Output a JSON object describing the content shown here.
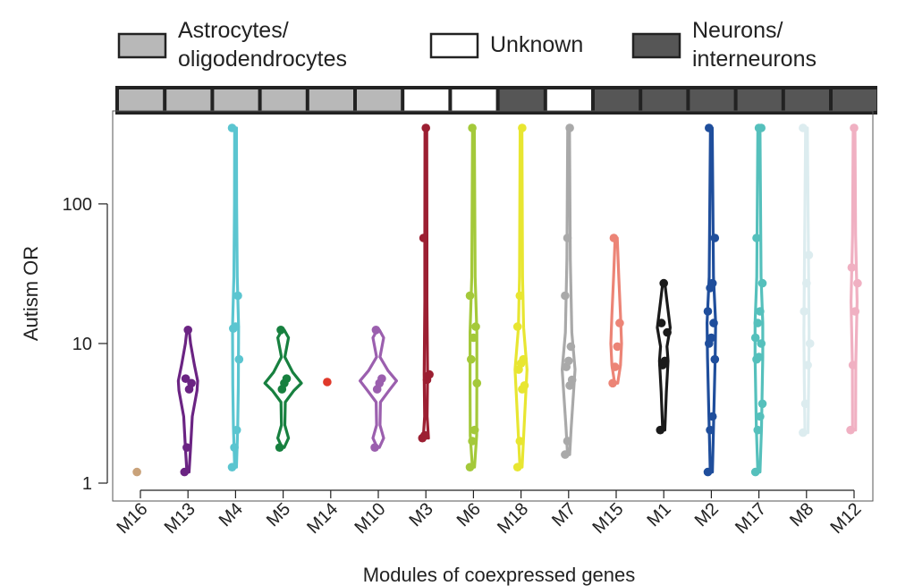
{
  "legend": [
    {
      "name": "Astrocytes/\noligodendrocytes",
      "lines": [
        "Astrocytes/",
        "oligodendrocytes"
      ],
      "color": "#b8b8b8"
    },
    {
      "name": "Unknown",
      "lines": [
        "Unknown"
      ],
      "color": "#ffffff"
    },
    {
      "name": "Neurons/\ninterneurons",
      "lines": [
        "Neurons/",
        "interneurons"
      ],
      "color": "#565656"
    }
  ],
  "chart_data": {
    "type": "violin",
    "xlabel": "Modules of coexpressed genes",
    "ylabel": "Autism OR",
    "yscale": "log",
    "ylim": [
      0.93,
      420
    ],
    "yticks": [
      1,
      10,
      100
    ],
    "grid": false,
    "legend_position": "top",
    "categories": [
      "M16",
      "M13",
      "M4",
      "M5",
      "M14",
      "M10",
      "M3",
      "M6",
      "M18",
      "M7",
      "M15",
      "M1",
      "M2",
      "M17",
      "M8",
      "M12"
    ],
    "cell_types": [
      "Astrocytes/\noligodendrocytes",
      "Astrocytes/\noligodendrocytes",
      "Astrocytes/\noligodendrocytes",
      "Astrocytes/\noligodendrocytes",
      "Astrocytes/\noligodendrocytes",
      "Astrocytes/\noligodendrocytes",
      "Unknown",
      "Unknown",
      "Neurons/\ninterneurons",
      "Unknown",
      "Neurons/\ninterneurons",
      "Neurons/\ninterneurons",
      "Neurons/\ninterneurons",
      "Neurons/\ninterneurons",
      "Neurons/\ninterneurons",
      "Neurons/\ninterneurons"
    ],
    "colors": [
      "#c9a27a",
      "#6b2483",
      "#5bc5d0",
      "#17803f",
      "#e0392b",
      "#9b5fae",
      "#9c1f32",
      "#a4c93a",
      "#e8e631",
      "#a9a9a9",
      "#ec8476",
      "#1a1a1a",
      "#1f4e9c",
      "#55c0bc",
      "#dcecef",
      "#f0b0c2"
    ],
    "series": [
      {
        "name": "M16",
        "points": [
          1.2
        ],
        "violin": []
      },
      {
        "name": "M13",
        "points": [
          1.2,
          1.8,
          4.7,
          5.2,
          5.6,
          12.5
        ],
        "violin": [
          [
            1.2,
            0.05
          ],
          [
            1.8,
            0.12
          ],
          [
            3,
            0.2
          ],
          [
            4.6,
            0.42
          ],
          [
            5.4,
            0.45
          ],
          [
            7,
            0.3
          ],
          [
            10,
            0.12
          ],
          [
            12.5,
            0.05
          ]
        ]
      },
      {
        "name": "M4",
        "points": [
          1.3,
          1.8,
          2.4,
          7.7,
          12.8,
          13.2,
          22,
          350
        ],
        "violin": [
          [
            1.3,
            0.04
          ],
          [
            2.5,
            0.1
          ],
          [
            5,
            0.13
          ],
          [
            13,
            0.14
          ],
          [
            30,
            0.08
          ],
          [
            100,
            0.05
          ],
          [
            350,
            0.04
          ]
        ]
      },
      {
        "name": "M5",
        "points": [
          1.8,
          4.7,
          5.2,
          5.6,
          12.5
        ],
        "violin": [
          [
            1.8,
            0.05
          ],
          [
            2.1,
            0.25
          ],
          [
            2.6,
            0.08
          ],
          [
            3.8,
            0.1
          ],
          [
            4.6,
            0.5
          ],
          [
            5.2,
            0.85
          ],
          [
            6.2,
            0.45
          ],
          [
            8,
            0.08
          ],
          [
            11,
            0.25
          ],
          [
            12.5,
            0.05
          ]
        ]
      },
      {
        "name": "M14",
        "points": [
          5.3
        ],
        "violin": []
      },
      {
        "name": "M10",
        "points": [
          1.8,
          4.7,
          5.2,
          5.6,
          12.5
        ],
        "violin": [
          [
            1.8,
            0.05
          ],
          [
            2.1,
            0.25
          ],
          [
            2.6,
            0.08
          ],
          [
            3.8,
            0.1
          ],
          [
            4.6,
            0.5
          ],
          [
            5.4,
            0.85
          ],
          [
            6.4,
            0.45
          ],
          [
            8,
            0.08
          ],
          [
            11,
            0.25
          ],
          [
            12.5,
            0.05
          ]
        ]
      },
      {
        "name": "M3",
        "points": [
          2.1,
          2.2,
          5.5,
          6.0,
          57,
          350
        ],
        "violin": [
          [
            2.1,
            0.12
          ],
          [
            3,
            0.06
          ],
          [
            6,
            0.08
          ],
          [
            20,
            0.05
          ],
          [
            57,
            0.05
          ],
          [
            350,
            0.04
          ]
        ]
      },
      {
        "name": "M6",
        "points": [
          1.3,
          2.0,
          2.4,
          5.2,
          7.7,
          11.0,
          13.2,
          22,
          350
        ],
        "violin": [
          [
            1.3,
            0.05
          ],
          [
            2.2,
            0.15
          ],
          [
            5,
            0.16
          ],
          [
            12,
            0.16
          ],
          [
            30,
            0.08
          ],
          [
            350,
            0.04
          ]
        ]
      },
      {
        "name": "M18",
        "points": [
          1.3,
          2.0,
          4.7,
          5.0,
          6.5,
          7.2,
          7.7,
          13.2,
          22,
          350
        ],
        "violin": [
          [
            1.3,
            0.05
          ],
          [
            2.5,
            0.14
          ],
          [
            6.5,
            0.28
          ],
          [
            13,
            0.12
          ],
          [
            30,
            0.07
          ],
          [
            350,
            0.04
          ]
        ]
      },
      {
        "name": "M7",
        "points": [
          1.6,
          2.0,
          5.0,
          5.5,
          6.8,
          7.5,
          9.5,
          22,
          57,
          350
        ],
        "violin": [
          [
            1.6,
            0.05
          ],
          [
            2.5,
            0.12
          ],
          [
            6.5,
            0.3
          ],
          [
            12,
            0.15
          ],
          [
            40,
            0.08
          ],
          [
            350,
            0.04
          ]
        ]
      },
      {
        "name": "M15",
        "points": [
          5.2,
          6.8,
          9.5,
          14,
          57
        ],
        "violin": [
          [
            5.2,
            0.07
          ],
          [
            7,
            0.2
          ],
          [
            10,
            0.25
          ],
          [
            16,
            0.2
          ],
          [
            30,
            0.12
          ],
          [
            57,
            0.05
          ]
        ]
      },
      {
        "name": "M1",
        "points": [
          2.4,
          7.0,
          7.5,
          12.0,
          14,
          27
        ],
        "violin": [
          [
            2.4,
            0.05
          ],
          [
            4.5,
            0.12
          ],
          [
            7.5,
            0.2
          ],
          [
            9.5,
            0.15
          ],
          [
            13,
            0.3
          ],
          [
            20,
            0.15
          ],
          [
            27,
            0.05
          ]
        ]
      },
      {
        "name": "M2",
        "points": [
          1.2,
          2.4,
          3.0,
          7.7,
          10.0,
          11.0,
          14,
          17,
          25,
          27,
          57,
          350
        ],
        "violin": [
          [
            1.2,
            0.05
          ],
          [
            2.5,
            0.1
          ],
          [
            8,
            0.18
          ],
          [
            14,
            0.2
          ],
          [
            30,
            0.1
          ],
          [
            350,
            0.04
          ]
        ]
      },
      {
        "name": "M17",
        "points": [
          1.2,
          2.4,
          3.0,
          3.7,
          7.7,
          8.0,
          10.0,
          11.0,
          14,
          17,
          27,
          57,
          350,
          350
        ],
        "violin": [
          [
            1.2,
            0.05
          ],
          [
            2.5,
            0.12
          ],
          [
            8,
            0.18
          ],
          [
            14,
            0.18
          ],
          [
            30,
            0.1
          ],
          [
            350,
            0.05
          ]
        ]
      },
      {
        "name": "M8",
        "points": [
          2.3,
          3.7,
          7.0,
          10.0,
          17,
          27,
          43,
          350
        ],
        "violin": [
          [
            2.3,
            0.07
          ],
          [
            5,
            0.1
          ],
          [
            12,
            0.12
          ],
          [
            30,
            0.1
          ],
          [
            350,
            0.04
          ]
        ]
      },
      {
        "name": "M12",
        "points": [
          2.4,
          7.0,
          17,
          27,
          35,
          350
        ],
        "violin": [
          [
            2.4,
            0.07
          ],
          [
            7,
            0.08
          ],
          [
            20,
            0.14
          ],
          [
            60,
            0.07
          ],
          [
            350,
            0.04
          ]
        ]
      }
    ]
  }
}
